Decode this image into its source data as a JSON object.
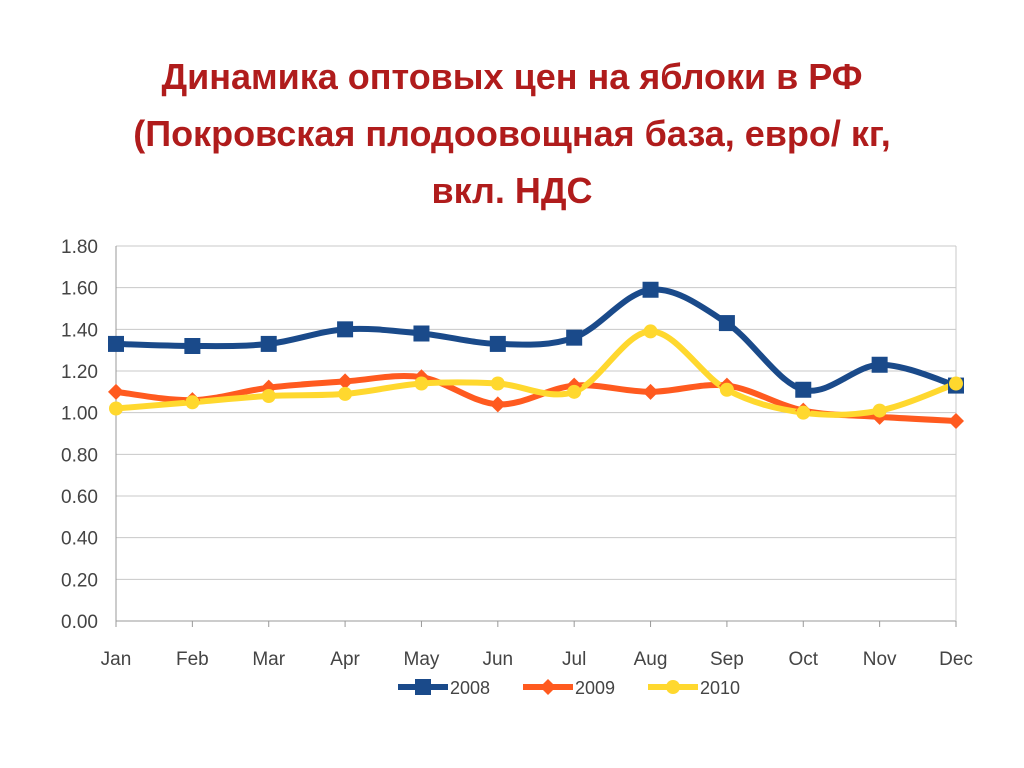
{
  "slide": {
    "title_lines": [
      "Динамика оптовых цен на яблоки в РФ",
      "(Покровская плодоовощная база, евро/ кг,",
      "вкл. НДС"
    ]
  },
  "chart_data": {
    "type": "line",
    "title": "",
    "xlabel": "",
    "ylabel": "",
    "categories": [
      "Jan",
      "Feb",
      "Mar",
      "Apr",
      "May",
      "Jun",
      "Jul",
      "Aug",
      "Sep",
      "Oct",
      "Nov",
      "Dec"
    ],
    "ylim": [
      0,
      1.8
    ],
    "yticks": [
      "0.00",
      "0.20",
      "0.40",
      "0.60",
      "0.80",
      "1.00",
      "1.20",
      "1.40",
      "1.60",
      "1.80"
    ],
    "grid": true,
    "smooth": true,
    "legend_position": "bottom",
    "series": [
      {
        "name": "2008",
        "color": "#1a4a8a",
        "marker": "square",
        "values": [
          1.33,
          1.32,
          1.33,
          1.4,
          1.38,
          1.33,
          1.36,
          1.59,
          1.43,
          1.11,
          1.23,
          1.13
        ]
      },
      {
        "name": "2009",
        "color": "#ff5a1f",
        "marker": "diamond",
        "values": [
          1.1,
          1.06,
          1.12,
          1.15,
          1.17,
          1.04,
          1.13,
          1.1,
          1.13,
          1.01,
          0.98,
          0.96
        ]
      },
      {
        "name": "2010",
        "color": "#ffd82e",
        "marker": "circle",
        "values": [
          1.02,
          1.05,
          1.08,
          1.09,
          1.14,
          1.14,
          1.1,
          1.39,
          1.11,
          1.0,
          1.01,
          1.14
        ]
      }
    ]
  }
}
